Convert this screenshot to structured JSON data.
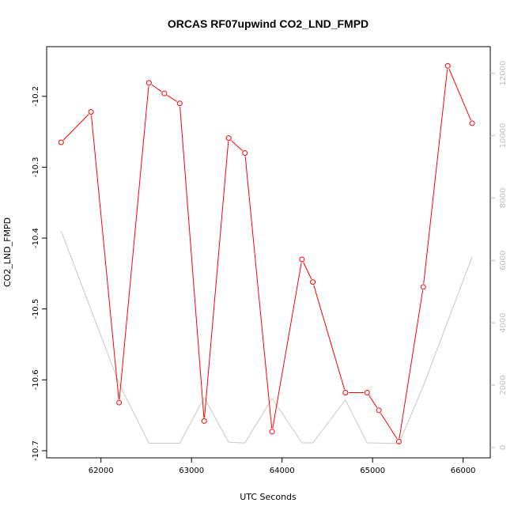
{
  "chart_data": {
    "type": "line",
    "title": "ORCAS RF07upwind CO2_LND_FMPD",
    "xlabel": "UTC Seconds",
    "ylabel": "CO2_LND_FMPD",
    "xlim": [
      61400,
      66300
    ],
    "ylim": [
      -10.71,
      -10.13
    ],
    "y2lim": [
      -330,
      12850
    ],
    "x_ticks": [
      62000,
      63000,
      64000,
      65000,
      66000
    ],
    "y_ticks": [
      -10.2,
      -10.3,
      -10.4,
      -10.5,
      -10.6,
      -10.7
    ],
    "y2_ticks": [
      0,
      2000,
      4000,
      6000,
      8000,
      10000,
      12000
    ],
    "colors": {
      "primary": "#ff0000",
      "secondary": "#c8c8c8",
      "secondary_axis": "#bdbdbd"
    },
    "series": [
      {
        "axis": "left",
        "x": [
          61560,
          61890,
          62200,
          62530,
          62700,
          62870,
          63140,
          63410,
          63590,
          63890,
          64220,
          64340,
          64700,
          64940,
          65070,
          65290,
          65560,
          65830,
          66100
        ],
        "values": [
          -10.265,
          -10.222,
          -10.632,
          -10.181,
          -10.196,
          -10.21,
          -10.658,
          -10.259,
          -10.28,
          -10.673,
          -10.43,
          -10.462,
          -10.618,
          -10.618,
          -10.643,
          -10.687,
          -10.469,
          -10.157,
          -10.238
        ]
      },
      {
        "axis": "right",
        "x": [
          61560,
          62200,
          62530,
          62870,
          63140,
          63410,
          63590,
          63890,
          64220,
          64340,
          64700,
          64940,
          65290,
          65560,
          66100
        ],
        "values": [
          6940,
          2050,
          140,
          140,
          1600,
          170,
          150,
          1580,
          150,
          150,
          1530,
          150,
          130,
          1970,
          6120
        ]
      }
    ]
  }
}
